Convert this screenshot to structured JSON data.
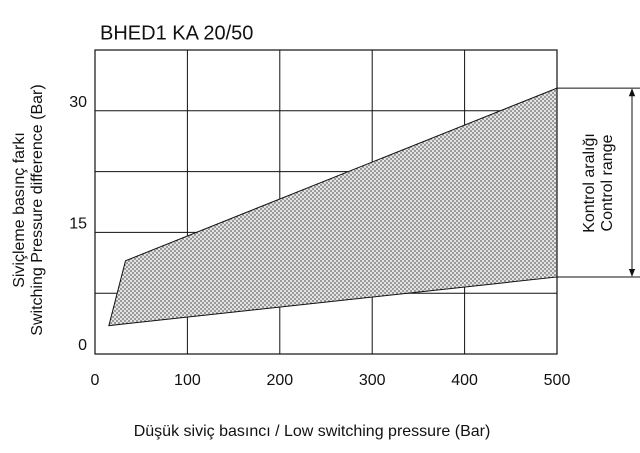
{
  "chart_data": {
    "type": "area",
    "title": "BHED1 KA 20/50",
    "ylabel": [
      "Siviçleme basınç farkı",
      "Switching Pressure difference (Bar)"
    ],
    "xlabel": "Düşük siviç basıncı / Low switching pressure (Bar)",
    "annotation": [
      "Kontrol aralığı",
      "Control range"
    ],
    "xlim": [
      0,
      500
    ],
    "xticks": [
      0,
      100,
      200,
      300,
      400,
      500
    ],
    "ylim": [
      0,
      37.5
    ],
    "yticks": [
      0,
      15,
      30
    ],
    "ygrid": [
      7.5,
      15,
      22.5,
      30
    ],
    "grid": true,
    "region": {
      "x": [
        15,
        33,
        500,
        500
      ],
      "y": [
        3.5,
        11.5,
        32.8,
        9.5
      ]
    }
  }
}
